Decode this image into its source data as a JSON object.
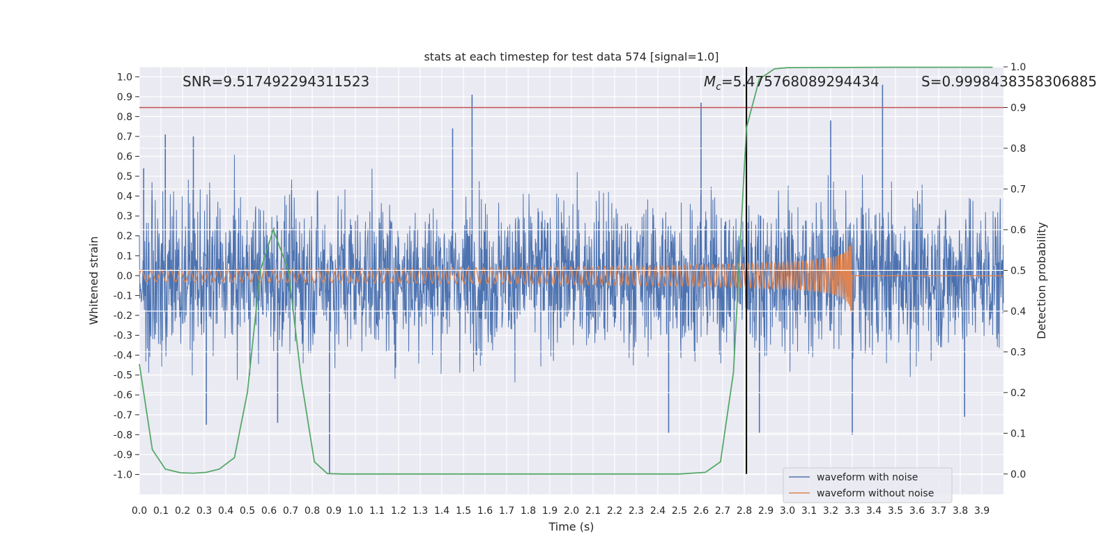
{
  "chart_data": {
    "type": "line",
    "title": "stats at each timestep for test data 574 [signal=1.0]",
    "xlabel": "Time (s)",
    "ylabel": "Whitened strain",
    "ylabel_right": "Detection probability",
    "xlim": [
      0.0,
      4.0
    ],
    "ylim": [
      -1.1,
      1.05
    ],
    "ylim_right": [
      -0.05,
      1.0
    ],
    "x_ticks": [
      "0.0",
      "0.1",
      "0.2",
      "0.3",
      "0.4",
      "0.5",
      "0.6",
      "0.7",
      "0.8",
      "0.9",
      "1.0",
      "1.1",
      "1.2",
      "1.3",
      "1.4",
      "1.5",
      "1.6",
      "1.7",
      "1.8",
      "1.9",
      "2.0",
      "2.1",
      "2.2",
      "2.3",
      "2.4",
      "2.5",
      "2.6",
      "2.7",
      "2.8",
      "2.9",
      "3.0",
      "3.1",
      "3.2",
      "3.3",
      "3.4",
      "3.5",
      "3.6",
      "3.7",
      "3.8",
      "3.9"
    ],
    "y_ticks": [
      "1.0",
      "0.9",
      "0.8",
      "0.7",
      "0.6",
      "0.5",
      "0.4",
      "0.3",
      "0.2",
      "0.1",
      "0.0",
      "-0.1",
      "-0.2",
      "-0.3",
      "-0.4",
      "-0.5",
      "-0.6",
      "-0.7",
      "-0.8",
      "-0.9",
      "-1.0"
    ],
    "y_ticks_right": [
      "1.0",
      "0.9",
      "0.8",
      "0.7",
      "0.6",
      "0.5",
      "0.4",
      "0.3",
      "0.2",
      "0.1",
      "0.0"
    ],
    "grid": true,
    "legend_position": "lower-right",
    "series": [
      {
        "name": "waveform with noise",
        "color": "#4c72b0",
        "kind": "noise",
        "typical_amplitude": 0.45,
        "spikes": [
          {
            "x": 0.02,
            "y": 0.54
          },
          {
            "x": 0.12,
            "y": 0.71
          },
          {
            "x": 0.25,
            "y": 0.7
          },
          {
            "x": 0.31,
            "y": -0.75
          },
          {
            "x": 0.64,
            "y": -0.74
          },
          {
            "x": 0.88,
            "y": -1.0
          },
          {
            "x": 1.45,
            "y": 0.74
          },
          {
            "x": 1.54,
            "y": 0.91
          },
          {
            "x": 2.45,
            "y": -0.79
          },
          {
            "x": 2.6,
            "y": 0.87
          },
          {
            "x": 2.87,
            "y": -0.79
          },
          {
            "x": 3.2,
            "y": 0.78
          },
          {
            "x": 3.3,
            "y": -0.8
          },
          {
            "x": 3.44,
            "y": 0.96
          },
          {
            "x": 3.82,
            "y": -0.71
          }
        ]
      },
      {
        "name": "waveform without noise",
        "color": "#dd8452",
        "kind": "chirp",
        "start_amplitude": 0.03,
        "peak_amplitude": 0.19,
        "merger_time": 3.3,
        "f_start": 22,
        "f_end": 200
      },
      {
        "name": "detection probability",
        "color": "#55a868",
        "axis": "right",
        "legend": false,
        "x": [
          0.0,
          0.06,
          0.12,
          0.19,
          0.25,
          0.31,
          0.37,
          0.44,
          0.5,
          0.56,
          0.62,
          0.69,
          0.75,
          0.81,
          0.87,
          0.94,
          1.0,
          1.5,
          2.0,
          2.5,
          2.62,
          2.69,
          2.75,
          2.81,
          2.87,
          2.94,
          3.0,
          3.5,
          3.95
        ],
        "y": [
          0.27,
          0.06,
          0.012,
          0.003,
          0.002,
          0.004,
          0.012,
          0.04,
          0.2,
          0.5,
          0.6,
          0.5,
          0.23,
          0.03,
          0.001,
          0.0,
          0.0,
          0.0,
          0.0,
          0.0,
          0.004,
          0.03,
          0.25,
          0.85,
          0.97,
          0.995,
          0.998,
          0.999,
          0.999
        ]
      }
    ],
    "annotations": {
      "snr": "SNR=9.517492294311523",
      "mc_symbol": "M",
      "mc_sub": "c",
      "mc_value": "=5.475768089294434",
      "s_value": "S=0.9998438358306885"
    },
    "threshold_right": 0.9,
    "threshold_color": "#c44e52",
    "marker_time": 2.81,
    "marker_color": "#000000"
  }
}
